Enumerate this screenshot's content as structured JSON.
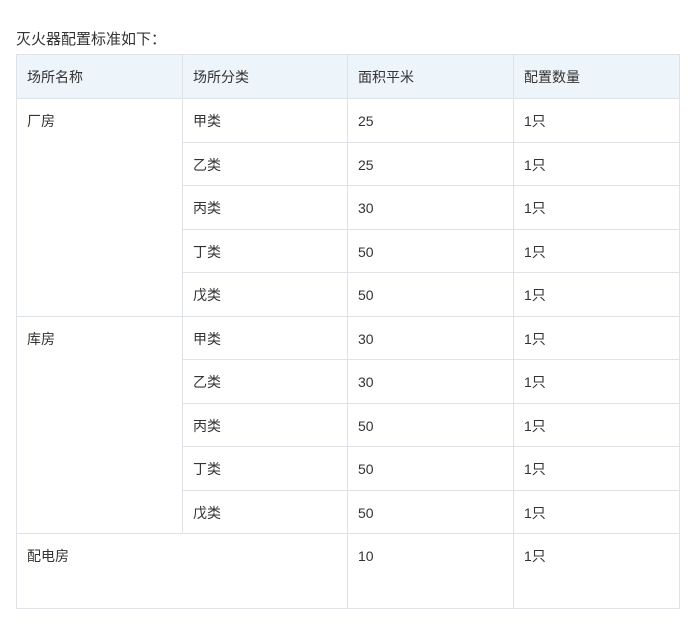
{
  "title": "灭火器配置标准如下：",
  "table": {
    "headers": [
      "场所名称",
      "场所分类",
      "面积平米",
      "配置数量"
    ],
    "groups": [
      {
        "name": "厂房",
        "rows": [
          [
            "甲类",
            "25",
            "1只"
          ],
          [
            "乙类",
            "25",
            "1只"
          ],
          [
            "丙类",
            "30",
            "1只"
          ],
          [
            "丁类",
            "50",
            "1只"
          ],
          [
            "戊类",
            "50",
            "1只"
          ]
        ]
      },
      {
        "name": "库房",
        "rows": [
          [
            "甲类",
            "30",
            "1只"
          ],
          [
            "乙类",
            "30",
            "1只"
          ],
          [
            "丙类",
            "50",
            "1只"
          ],
          [
            "丁类",
            "50",
            "1只"
          ],
          [
            "戊类",
            "50",
            "1只"
          ]
        ]
      }
    ],
    "footer_row": {
      "name": "配电房",
      "area": "10",
      "count": "1只"
    }
  }
}
